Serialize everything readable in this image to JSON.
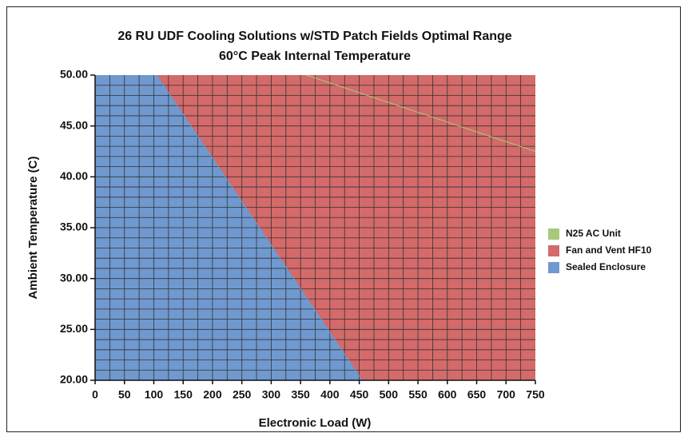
{
  "chart_data": {
    "type": "area",
    "title": "26 RU UDF Cooling Solutions w/STD Patch Fields Optimal Range",
    "subtitle": "60°C Peak Internal Temperature",
    "x_label": "Electronic Load (W)",
    "y_label": "Ambient Temperature (C)",
    "xlim": [
      0,
      750
    ],
    "ylim": [
      20,
      50
    ],
    "xticks": [
      0,
      50,
      100,
      150,
      200,
      250,
      300,
      350,
      400,
      450,
      500,
      550,
      600,
      650,
      700,
      750
    ],
    "yticks": [
      {
        "value": 20,
        "label": "20.00"
      },
      {
        "value": 25,
        "label": "25.00"
      },
      {
        "value": 30,
        "label": "30.00"
      },
      {
        "value": 35,
        "label": "35.00"
      },
      {
        "value": 40,
        "label": "40.00"
      },
      {
        "value": 45,
        "label": "45.00"
      },
      {
        "value": 50,
        "label": "50.00"
      }
    ],
    "grid": {
      "x_step": 25,
      "y_step": 1
    },
    "legend": "right",
    "series": [
      {
        "name": "N25 AC Unit",
        "color": "#a9c97a",
        "fill": "above",
        "x": [
          360,
          750
        ],
        "values": [
          50,
          42.5
        ]
      },
      {
        "name": "Fan and Vent HF10",
        "color": "#d46a6a",
        "fill": "all"
      },
      {
        "name": "Sealed Enclosure",
        "color": "#6f99cf",
        "fill": "below",
        "x": [
          105,
          455
        ],
        "values": [
          50,
          20
        ]
      }
    ]
  }
}
